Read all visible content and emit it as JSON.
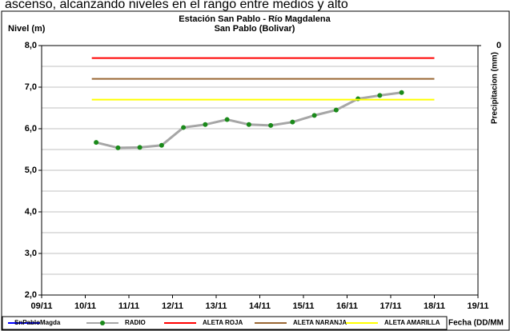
{
  "page_text": "ascenso, alcanzando niveles en el rango entre medios y alto",
  "chart_data": {
    "type": "line",
    "title": "Estación San Pablo - Río Magdalena",
    "subtitle": "San Pablo (Bolivar)",
    "ylabel": "Nivel (m)",
    "y2label": "Precipitacion (mm)",
    "xlabel": "Fecha (DD/MM",
    "xlim": [
      0,
      10
    ],
    "xticks": [
      {
        "value": 0,
        "label": "09/11"
      },
      {
        "value": 1,
        "label": "10/11"
      },
      {
        "value": 2,
        "label": "11/11"
      },
      {
        "value": 3,
        "label": "12/11"
      },
      {
        "value": 4,
        "label": "13/11"
      },
      {
        "value": 5,
        "label": "14/11"
      },
      {
        "value": 6,
        "label": "15/11"
      },
      {
        "value": 7,
        "label": "16/11"
      },
      {
        "value": 8,
        "label": "17/11"
      },
      {
        "value": 9,
        "label": "18/11"
      },
      {
        "value": 10,
        "label": "19/11"
      }
    ],
    "ylim": [
      2,
      8
    ],
    "yticks": [
      {
        "value": 2,
        "label": "2,0"
      },
      {
        "value": 3,
        "label": "3,0"
      },
      {
        "value": 4,
        "label": "4,0"
      },
      {
        "value": 5,
        "label": "5,0"
      },
      {
        "value": 6,
        "label": "6,0"
      },
      {
        "value": 7,
        "label": "7,0"
      },
      {
        "value": 8,
        "label": "8,0"
      }
    ],
    "yminorticks": [
      2.5,
      3.5,
      4.5,
      5.5,
      6.5,
      7.5
    ],
    "y2ticks": [
      0
    ],
    "y2_inverted": true,
    "grid": true,
    "series": [
      {
        "name": "SnPabloMagda",
        "color": "#0000ff",
        "x": [],
        "values": []
      },
      {
        "name": "RADIO",
        "color": "#a6a6a6",
        "marker_color": "#1a8a1a",
        "x": [
          1.25,
          1.75,
          2.25,
          2.75,
          3.25,
          3.75,
          4.25,
          4.75,
          5.25,
          5.75,
          6.25,
          6.75,
          7.25,
          7.75,
          8.25
        ],
        "values": [
          5.67,
          5.54,
          5.55,
          5.6,
          6.03,
          6.1,
          6.22,
          6.1,
          6.08,
          6.16,
          6.32,
          6.45,
          6.72,
          6.8,
          6.87
        ]
      },
      {
        "name": "ALETA ROJA",
        "color": "#ff0000",
        "x": [
          1.15,
          9
        ],
        "values": [
          7.7,
          7.7
        ]
      },
      {
        "name": "ALETA NARANJA",
        "color": "#996633",
        "x": [
          1.15,
          9
        ],
        "values": [
          7.2,
          7.2
        ]
      },
      {
        "name": "ALETA AMARILLA",
        "color": "#ffff00",
        "x": [
          1.15,
          9
        ],
        "values": [
          6.7,
          6.7
        ]
      }
    ]
  }
}
